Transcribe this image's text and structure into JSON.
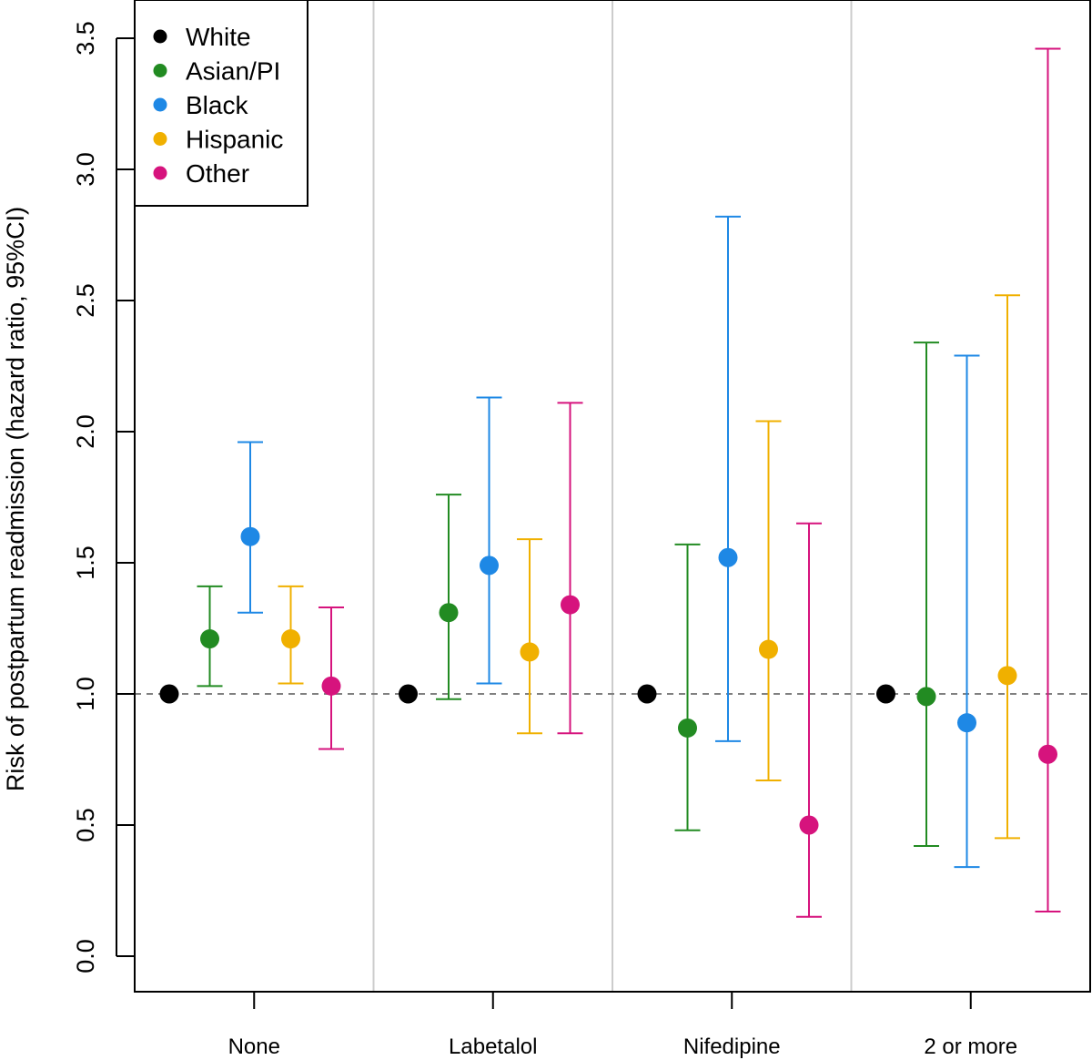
{
  "chart_data": {
    "type": "scatter",
    "subtype": "point-with-error-bars",
    "title": "",
    "xlabel": "",
    "ylabel": "Risk of postpartum readmission (hazard ratio, 95%CI)",
    "ylim": [
      -0.15,
      3.62
    ],
    "yticks": [
      0.0,
      0.5,
      1.0,
      1.5,
      2.0,
      2.5,
      3.0,
      3.5
    ],
    "ytick_labels": [
      "0.0",
      "0.5",
      "1.0",
      "1.5",
      "2.0",
      "2.5",
      "3.0",
      "3.5"
    ],
    "reference_line": 1.0,
    "legend_position": "top-left",
    "categories": [
      "None",
      "Labetalol",
      "Nifedipine",
      "2 or more"
    ],
    "series": [
      {
        "name": "White",
        "color": "#000000",
        "points": [
          {
            "est": 1.0
          },
          {
            "est": 1.0
          },
          {
            "est": 1.0
          },
          {
            "est": 1.0
          }
        ]
      },
      {
        "name": "Asian/PI",
        "color": "#228B22",
        "points": [
          {
            "est": 1.21,
            "lo": 1.03,
            "hi": 1.41
          },
          {
            "est": 1.31,
            "lo": 0.98,
            "hi": 1.76
          },
          {
            "est": 0.87,
            "lo": 0.48,
            "hi": 1.57
          },
          {
            "est": 0.99,
            "lo": 0.42,
            "hi": 2.34
          }
        ]
      },
      {
        "name": "Black",
        "color": "#1E88E5",
        "points": [
          {
            "est": 1.6,
            "lo": 1.31,
            "hi": 1.96
          },
          {
            "est": 1.49,
            "lo": 1.04,
            "hi": 2.13
          },
          {
            "est": 1.52,
            "lo": 0.82,
            "hi": 2.82
          },
          {
            "est": 0.89,
            "lo": 0.34,
            "hi": 2.29
          }
        ]
      },
      {
        "name": "Hispanic",
        "color": "#F0B000",
        "points": [
          {
            "est": 1.21,
            "lo": 1.04,
            "hi": 1.41
          },
          {
            "est": 1.16,
            "lo": 0.85,
            "hi": 1.59
          },
          {
            "est": 1.17,
            "lo": 0.67,
            "hi": 2.04
          },
          {
            "est": 1.07,
            "lo": 0.45,
            "hi": 2.52
          }
        ]
      },
      {
        "name": "Other",
        "color": "#D6137D",
        "points": [
          {
            "est": 1.03,
            "lo": 0.79,
            "hi": 1.33
          },
          {
            "est": 1.34,
            "lo": 0.85,
            "hi": 2.11
          },
          {
            "est": 0.5,
            "lo": 0.15,
            "hi": 1.65
          },
          {
            "est": 0.77,
            "lo": 0.17,
            "hi": 3.46
          }
        ]
      }
    ]
  }
}
